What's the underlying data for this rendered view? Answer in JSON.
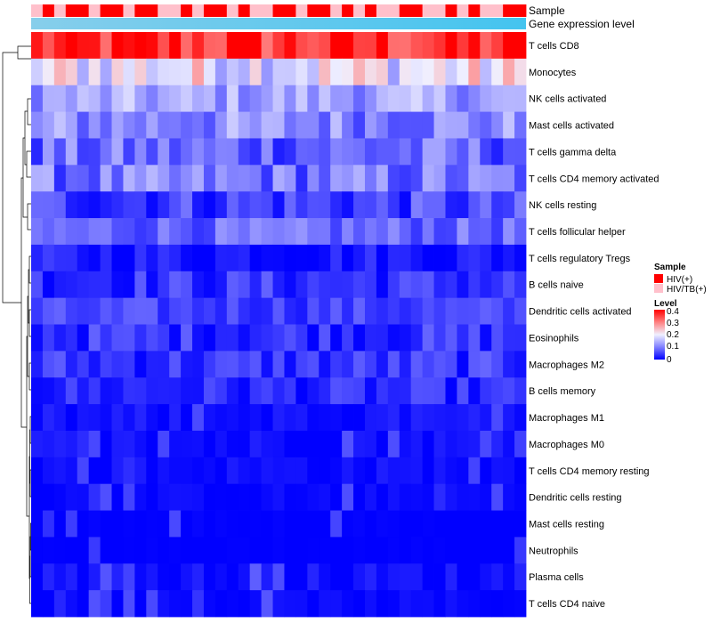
{
  "chart_data": {
    "type": "heatmap",
    "annotation_tracks": [
      "Sample",
      "Gene expression level"
    ],
    "sample_groups": [
      {
        "name": "HIV(+)",
        "color": "#ff0000"
      },
      {
        "name": "HIV/TB(+)",
        "color": "#ffc0cb"
      }
    ],
    "sample_annotation": [
      1,
      0,
      1,
      0,
      0,
      1,
      0,
      0,
      1,
      0,
      0,
      1,
      1,
      0,
      1,
      0,
      0,
      1,
      0,
      1,
      1,
      0,
      0,
      1,
      0,
      0,
      1,
      0,
      1,
      0,
      1,
      1,
      0,
      0,
      1,
      1,
      0,
      1,
      0,
      1,
      1,
      0,
      0
    ],
    "gene_expression_bar_colors": [
      "#87ceeb",
      "#44c4ef"
    ],
    "rows": [
      "T cells CD8",
      "Monocytes",
      "NK cells activated",
      "Mast cells activated",
      "T cells gamma delta",
      "T cells CD4 memory activated",
      "NK cells resting",
      "T cells follicular helper",
      "T cells regulatory  Tregs",
      "B cells naive",
      "Dendritic cells activated",
      "Eosinophils",
      "Macrophages M2",
      "B cells memory",
      "Macrophages M1",
      "Macrophages M0",
      "T cells CD4 memory resting",
      "Dendritic cells resting",
      "Mast cells resting",
      "Neutrophils",
      "Plasma cells",
      "T cells CD4 naive"
    ],
    "n_columns": 43,
    "row_typical_levels": [
      0.36,
      0.2,
      0.13,
      0.11,
      0.08,
      0.09,
      0.05,
      0.08,
      0.02,
      0.04,
      0.05,
      0.04,
      0.04,
      0.03,
      0.01,
      0.01,
      0.01,
      0.005,
      0.0,
      0.0,
      0.01,
      0.005
    ],
    "row_spread": [
      0.07,
      0.08,
      0.05,
      0.06,
      0.06,
      0.06,
      0.05,
      0.04,
      0.03,
      0.04,
      0.03,
      0.04,
      0.04,
      0.035,
      0.02,
      0.02,
      0.015,
      0.01,
      0.005,
      0.003,
      0.02,
      0.01
    ],
    "color_scale": {
      "stops": [
        0,
        0.1,
        0.2,
        0.3,
        0.4
      ],
      "colors": [
        "#0000ff",
        "#8080ff",
        "#f0f0ff",
        "#ff8080",
        "#ff0000"
      ],
      "range": [
        0,
        0.4
      ]
    },
    "dendrogram": "hierarchical clustering of rows"
  },
  "legend": {
    "sample_title": "Sample",
    "level_title": "Level",
    "items": [
      "HIV(+)",
      "HIV/TB(+)"
    ],
    "ticks": [
      "0.4",
      "0.3",
      "0.2",
      "0.1",
      "0"
    ]
  }
}
